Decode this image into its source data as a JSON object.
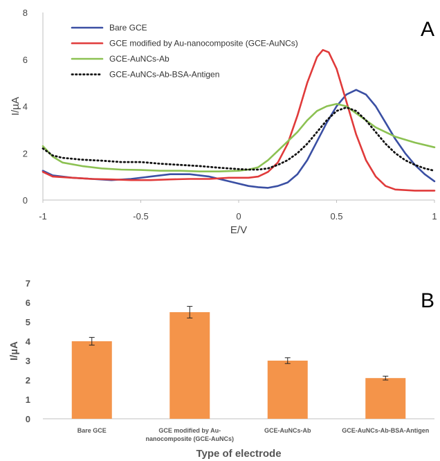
{
  "chart_data": [
    {
      "type": "line",
      "panel_label": "A",
      "xlabel": "E/V",
      "ylabel": "I/µA",
      "xlim": [
        -1,
        1
      ],
      "ylim": [
        0,
        8
      ],
      "xticks": [
        -1,
        -0.5,
        0,
        0.5,
        1
      ],
      "xtick_labels": [
        "-1",
        "-0.5",
        "0",
        "0.5",
        "1"
      ],
      "yticks": [
        0,
        2,
        4,
        6,
        8
      ],
      "ytick_labels": [
        "0",
        "2",
        "4",
        "6",
        "8"
      ],
      "grid": false,
      "legend_position": "top-left",
      "series": [
        {
          "name": "Bare GCE",
          "color": "#3a4fa3",
          "dash": "solid",
          "points": [
            [
              -1,
              1.25
            ],
            [
              -0.95,
              1.05
            ],
            [
              -0.85,
              0.95
            ],
            [
              -0.75,
              0.9
            ],
            [
              -0.65,
              0.85
            ],
            [
              -0.55,
              0.9
            ],
            [
              -0.45,
              1.0
            ],
            [
              -0.35,
              1.1
            ],
            [
              -0.25,
              1.1
            ],
            [
              -0.15,
              1.0
            ],
            [
              -0.05,
              0.8
            ],
            [
              0.05,
              0.6
            ],
            [
              0.1,
              0.55
            ],
            [
              0.15,
              0.52
            ],
            [
              0.2,
              0.6
            ],
            [
              0.25,
              0.75
            ],
            [
              0.3,
              1.1
            ],
            [
              0.35,
              1.7
            ],
            [
              0.4,
              2.5
            ],
            [
              0.45,
              3.3
            ],
            [
              0.5,
              4.0
            ],
            [
              0.55,
              4.5
            ],
            [
              0.6,
              4.7
            ],
            [
              0.65,
              4.5
            ],
            [
              0.7,
              4.0
            ],
            [
              0.75,
              3.3
            ],
            [
              0.8,
              2.6
            ],
            [
              0.85,
              2.0
            ],
            [
              0.9,
              1.5
            ],
            [
              0.95,
              1.1
            ],
            [
              1.0,
              0.8
            ]
          ]
        },
        {
          "name": "GCE modified by Au-nanocomposite (GCE-AuNCs)",
          "color": "#e03a3a",
          "dash": "solid",
          "points": [
            [
              -1,
              1.2
            ],
            [
              -0.95,
              1.0
            ],
            [
              -0.85,
              0.95
            ],
            [
              -0.75,
              0.9
            ],
            [
              -0.65,
              0.88
            ],
            [
              -0.55,
              0.85
            ],
            [
              -0.45,
              0.85
            ],
            [
              -0.35,
              0.88
            ],
            [
              -0.25,
              0.9
            ],
            [
              -0.15,
              0.9
            ],
            [
              -0.05,
              0.95
            ],
            [
              0.05,
              0.95
            ],
            [
              0.1,
              1.0
            ],
            [
              0.15,
              1.2
            ],
            [
              0.2,
              1.6
            ],
            [
              0.25,
              2.4
            ],
            [
              0.3,
              3.6
            ],
            [
              0.35,
              5.0
            ],
            [
              0.4,
              6.1
            ],
            [
              0.43,
              6.4
            ],
            [
              0.46,
              6.3
            ],
            [
              0.5,
              5.6
            ],
            [
              0.55,
              4.2
            ],
            [
              0.6,
              2.8
            ],
            [
              0.65,
              1.7
            ],
            [
              0.7,
              1.0
            ],
            [
              0.75,
              0.6
            ],
            [
              0.8,
              0.45
            ],
            [
              0.9,
              0.4
            ],
            [
              1.0,
              0.4
            ]
          ]
        },
        {
          "name": "GCE-AuNCs-Ab",
          "color": "#8cc152",
          "dash": "solid",
          "points": [
            [
              -1,
              2.3
            ],
            [
              -0.95,
              1.85
            ],
            [
              -0.9,
              1.6
            ],
            [
              -0.8,
              1.45
            ],
            [
              -0.7,
              1.35
            ],
            [
              -0.6,
              1.3
            ],
            [
              -0.5,
              1.28
            ],
            [
              -0.4,
              1.25
            ],
            [
              -0.3,
              1.25
            ],
            [
              -0.2,
              1.22
            ],
            [
              -0.1,
              1.22
            ],
            [
              0,
              1.25
            ],
            [
              0.05,
              1.3
            ],
            [
              0.1,
              1.4
            ],
            [
              0.15,
              1.7
            ],
            [
              0.2,
              2.1
            ],
            [
              0.25,
              2.5
            ],
            [
              0.3,
              2.9
            ],
            [
              0.35,
              3.4
            ],
            [
              0.4,
              3.8
            ],
            [
              0.45,
              4.0
            ],
            [
              0.5,
              4.1
            ],
            [
              0.55,
              4.0
            ],
            [
              0.6,
              3.7
            ],
            [
              0.65,
              3.4
            ],
            [
              0.7,
              3.1
            ],
            [
              0.75,
              2.9
            ],
            [
              0.8,
              2.7
            ],
            [
              0.9,
              2.45
            ],
            [
              1.0,
              2.25
            ]
          ]
        },
        {
          "name": "GCE-AuNCs-Ab-BSA-Antigen",
          "color": "#111111",
          "dash": "dotted",
          "points": [
            [
              -1,
              2.2
            ],
            [
              -0.95,
              1.9
            ],
            [
              -0.9,
              1.8
            ],
            [
              -0.8,
              1.72
            ],
            [
              -0.7,
              1.68
            ],
            [
              -0.6,
              1.62
            ],
            [
              -0.5,
              1.62
            ],
            [
              -0.4,
              1.55
            ],
            [
              -0.3,
              1.5
            ],
            [
              -0.2,
              1.45
            ],
            [
              -0.1,
              1.38
            ],
            [
              0,
              1.32
            ],
            [
              0.05,
              1.3
            ],
            [
              0.1,
              1.3
            ],
            [
              0.15,
              1.35
            ],
            [
              0.2,
              1.5
            ],
            [
              0.25,
              1.7
            ],
            [
              0.3,
              2.0
            ],
            [
              0.35,
              2.4
            ],
            [
              0.4,
              2.9
            ],
            [
              0.45,
              3.4
            ],
            [
              0.5,
              3.8
            ],
            [
              0.55,
              3.95
            ],
            [
              0.6,
              3.8
            ],
            [
              0.65,
              3.4
            ],
            [
              0.7,
              2.9
            ],
            [
              0.75,
              2.4
            ],
            [
              0.8,
              2.0
            ],
            [
              0.85,
              1.7
            ],
            [
              0.9,
              1.5
            ],
            [
              0.95,
              1.35
            ],
            [
              1.0,
              1.25
            ]
          ]
        }
      ]
    },
    {
      "type": "bar",
      "panel_label": "B",
      "xlabel": "Type of electrode",
      "ylabel": "I/µA",
      "ylim": [
        0,
        7
      ],
      "yticks": [
        0,
        1,
        2,
        3,
        4,
        5,
        6,
        7
      ],
      "ytick_labels": [
        "0",
        "1",
        "2",
        "3",
        "4",
        "5",
        "6",
        "7"
      ],
      "grid": false,
      "bar_color": "#f4944a",
      "categories": [
        [
          "Bare GCE"
        ],
        [
          "GCE modified by Au-",
          "nanocomposite (GCE-AuNCs)"
        ],
        [
          "GCE-AuNCs-Ab"
        ],
        [
          "GCE-AuNCs-Ab-BSA-Antigen"
        ]
      ],
      "values": [
        4.0,
        5.5,
        3.0,
        2.1
      ],
      "errors": [
        0.2,
        0.3,
        0.15,
        0.1
      ]
    }
  ]
}
